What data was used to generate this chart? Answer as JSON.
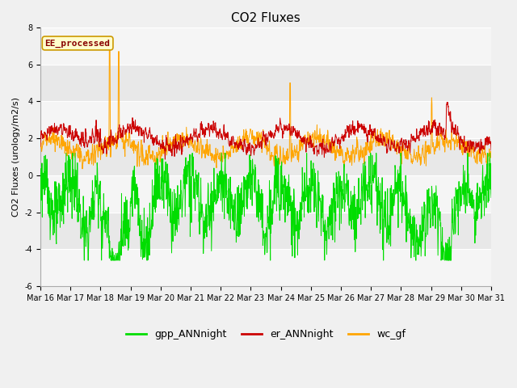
{
  "title": "CO2 Fluxes",
  "ylabel": "CO2 Fluxes (urology/m2/s)",
  "ylim": [
    -6,
    8
  ],
  "yticks": [
    -6,
    -4,
    -2,
    0,
    2,
    4,
    6,
    8
  ],
  "n_days": 15,
  "start_day": 16,
  "end_day": 31,
  "xtick_labels": [
    "Mar 16",
    "Mar 17",
    "Mar 18",
    "Mar 19",
    "Mar 20",
    "Mar 21",
    "Mar 22",
    "Mar 23",
    "Mar 24",
    "Mar 25",
    "Mar 26",
    "Mar 27",
    "Mar 28",
    "Mar 29",
    "Mar 30",
    "Mar 31"
  ],
  "gpp_color": "#00dd00",
  "er_color": "#cc0000",
  "wc_color": "#ffa500",
  "legend_label_gpp": "gpp_ANNnight",
  "legend_label_er": "er_ANNnight",
  "legend_label_wc": "wc_gf",
  "annotation_text": "EE_processed",
  "annotation_color": "#880000",
  "annotation_bg": "#ffffcc",
  "annotation_border": "#cc9900",
  "bg_color": "#e8e8e8",
  "bg_color2": "#f5f5f5",
  "grid_color": "#ffffff",
  "linewidth": 0.7,
  "title_fontsize": 11,
  "label_fontsize": 8,
  "tick_fontsize": 7,
  "legend_fontsize": 9
}
